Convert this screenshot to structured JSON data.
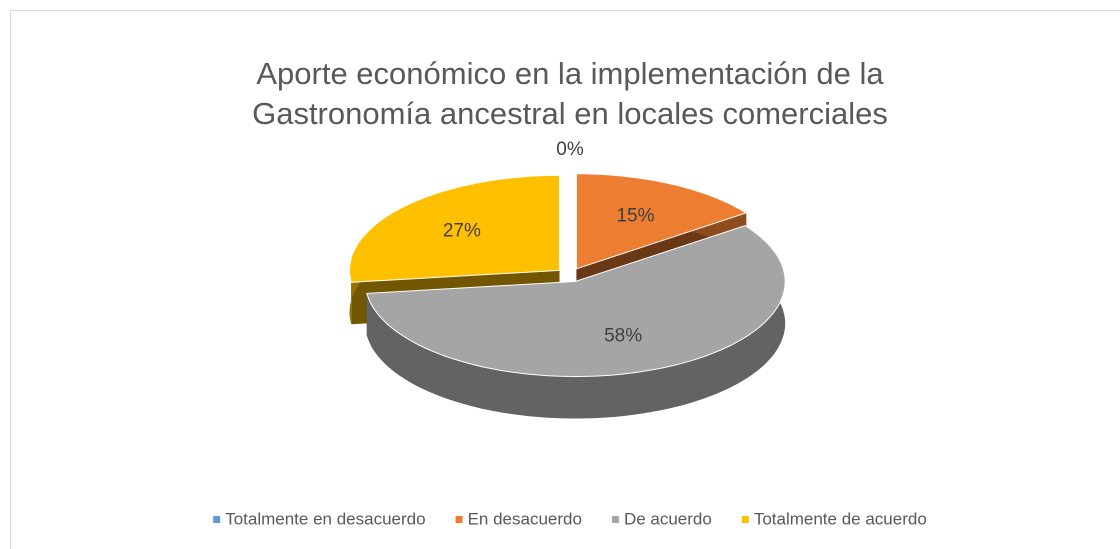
{
  "chart_data": {
    "type": "pie",
    "title": "Aporte económico en la implementación de la Gastronomía ancestral en locales comerciales",
    "categories": [
      "Totalmente en desacuerdo",
      "En desacuerdo",
      "De acuerdo",
      "Totalmente de acuerdo"
    ],
    "values": [
      0,
      15,
      58,
      27
    ],
    "value_labels": [
      "0%",
      "15%",
      "58%",
      "27%"
    ],
    "colors": [
      "#5b9bd5",
      "#ed7d31",
      "#a5a5a5",
      "#ffc000"
    ],
    "legend": "bottom"
  }
}
